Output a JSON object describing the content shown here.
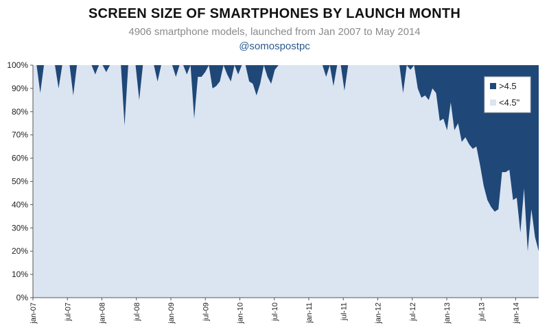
{
  "header": {
    "title": "SCREEN SIZE OF SMARTPHONES BY LAUNCH MONTH",
    "subtitle": "4906 smartphone models, launched from Jan 2007 to May 2014",
    "handle": "@somospostpc"
  },
  "colors": {
    "large": "#1f4878",
    "small": "#dbe4f1",
    "axis": "#555555"
  },
  "chart_data": {
    "type": "area",
    "stacked": true,
    "percent": true,
    "x_start": "2007-01",
    "x_end": "2014-05",
    "ylim": [
      0,
      100
    ],
    "y_ticks": [
      "0%",
      "10%",
      "20%",
      "30%",
      "40%",
      "50%",
      "60%",
      "70%",
      "80%",
      "90%",
      "100%"
    ],
    "x_ticks": [
      {
        "label": "jan-07",
        "month": "2007-01"
      },
      {
        "label": "jul-07",
        "month": "2007-07"
      },
      {
        "label": "jan-08",
        "month": "2008-01"
      },
      {
        "label": "jul-08",
        "month": "2008-07"
      },
      {
        "label": "jan-09",
        "month": "2009-01"
      },
      {
        "label": "jul-09",
        "month": "2009-07"
      },
      {
        "label": "jan-10",
        "month": "2010-01"
      },
      {
        "label": "jul-10",
        "month": "2010-07"
      },
      {
        "label": "jan-11",
        "month": "2011-01"
      },
      {
        "label": "jul-11",
        "month": "2011-07"
      },
      {
        "label": "jan-12",
        "month": "2012-01"
      },
      {
        "label": "jul-12",
        "month": "2012-07"
      },
      {
        "label": "jan-13",
        "month": "2013-01"
      },
      {
        "label": "jul-13",
        "month": "2013-07"
      },
      {
        "label": "jan-14",
        "month": "2014-01"
      }
    ],
    "legend_position": "top-right",
    "series": [
      {
        "name": ">4.5",
        "color": "#1f4878",
        "values": [
          0,
          0,
          12,
          0,
          0,
          0,
          0,
          10,
          0,
          0,
          0,
          13,
          0,
          0,
          0,
          0,
          0,
          4,
          0,
          0,
          3,
          0,
          0,
          0,
          0,
          26,
          0,
          0,
          0,
          15,
          0,
          0,
          0,
          0,
          7,
          0,
          0,
          0,
          0,
          5,
          0,
          0,
          4,
          0,
          23,
          5,
          5,
          3,
          0,
          10,
          9,
          7,
          0,
          4,
          7,
          0,
          4,
          0,
          0,
          7,
          8,
          13,
          8,
          0,
          5,
          8,
          2,
          0,
          0,
          0,
          0,
          0,
          0,
          0,
          0,
          0,
          0,
          0,
          0,
          0,
          5,
          0,
          9,
          0,
          0,
          11,
          0,
          0,
          0,
          0,
          0,
          0,
          0,
          0,
          0,
          0,
          0,
          0,
          0,
          0,
          0,
          12,
          0,
          2,
          0,
          10,
          14,
          13,
          15,
          10,
          12,
          24,
          23,
          28,
          16,
          28,
          25,
          33,
          31,
          34,
          36,
          35,
          43,
          52,
          58,
          61,
          63,
          62,
          46,
          46,
          45,
          58,
          57,
          72,
          53,
          80,
          62,
          74,
          80
        ],
        "values_note_skip": true
      },
      {
        "name": "<4.5\"",
        "color": "#dbe4f1"
      }
    ]
  }
}
